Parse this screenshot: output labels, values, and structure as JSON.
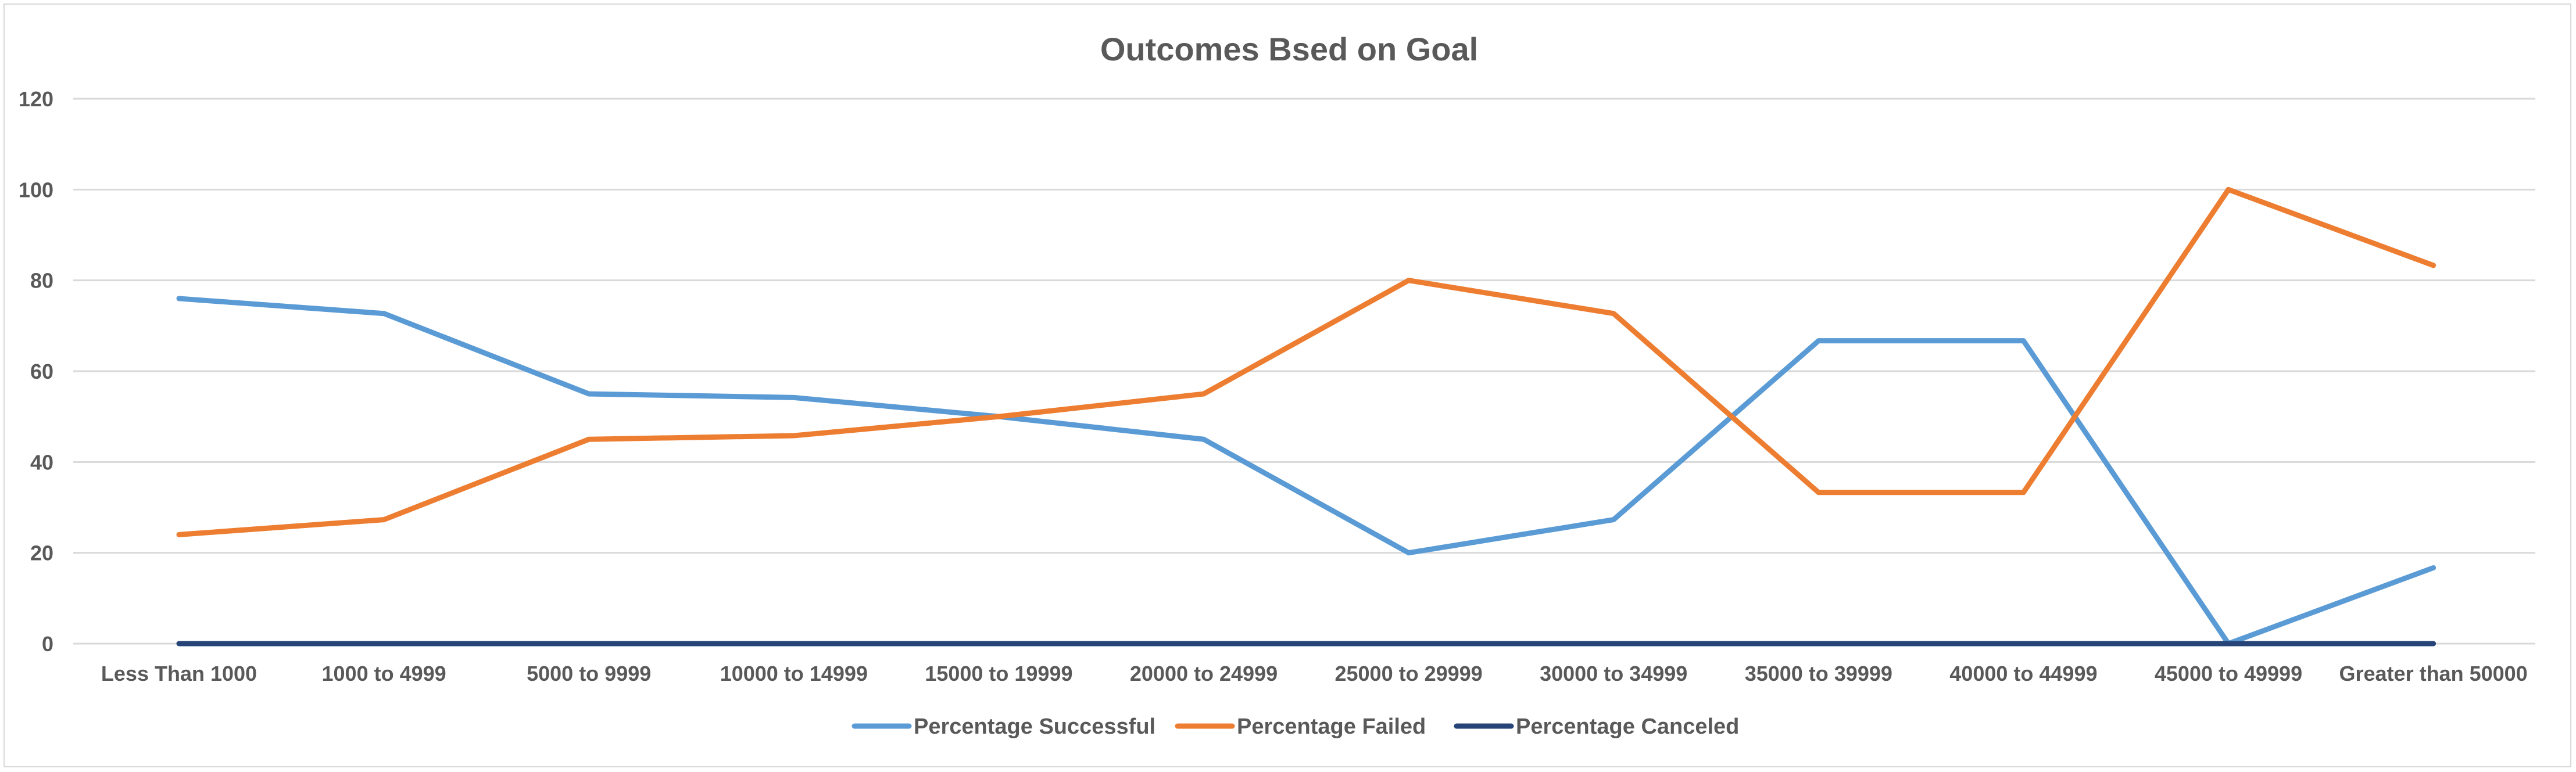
{
  "chart_data": {
    "type": "line",
    "title": "Outcomes Bsed on Goal",
    "xlabel": "",
    "ylabel": "",
    "categories": [
      "Less Than 1000",
      "1000 to 4999",
      "5000 to 9999",
      "10000 to 14999",
      "15000 to 19999",
      "20000 to 24999",
      "25000 to 29999",
      "30000 to 34999",
      "35000 to 39999",
      "40000 to 44999",
      "45000 to 49999",
      "Greater than 50000"
    ],
    "ylim": [
      0,
      120
    ],
    "yticks": [
      "0",
      "20",
      "40",
      "60",
      "80",
      "100",
      "120"
    ],
    "grid": true,
    "legend_position": "bottom",
    "series": [
      {
        "name": "Percentage Successful",
        "color": "#5b9bd5",
        "values": [
          76,
          72.7,
          55,
          54.2,
          50,
          45,
          20,
          27.3,
          66.7,
          66.7,
          0,
          16.7
        ]
      },
      {
        "name": "Percentage Failed",
        "color": "#ed7d31",
        "values": [
          24,
          27.3,
          45,
          45.8,
          50,
          55,
          80,
          72.7,
          33.3,
          33.3,
          100,
          83.3
        ]
      },
      {
        "name": "Percentage Canceled",
        "color": "#264478",
        "values": [
          0,
          0,
          0,
          0,
          0,
          0,
          0,
          0,
          0,
          0,
          0,
          0
        ]
      }
    ]
  }
}
